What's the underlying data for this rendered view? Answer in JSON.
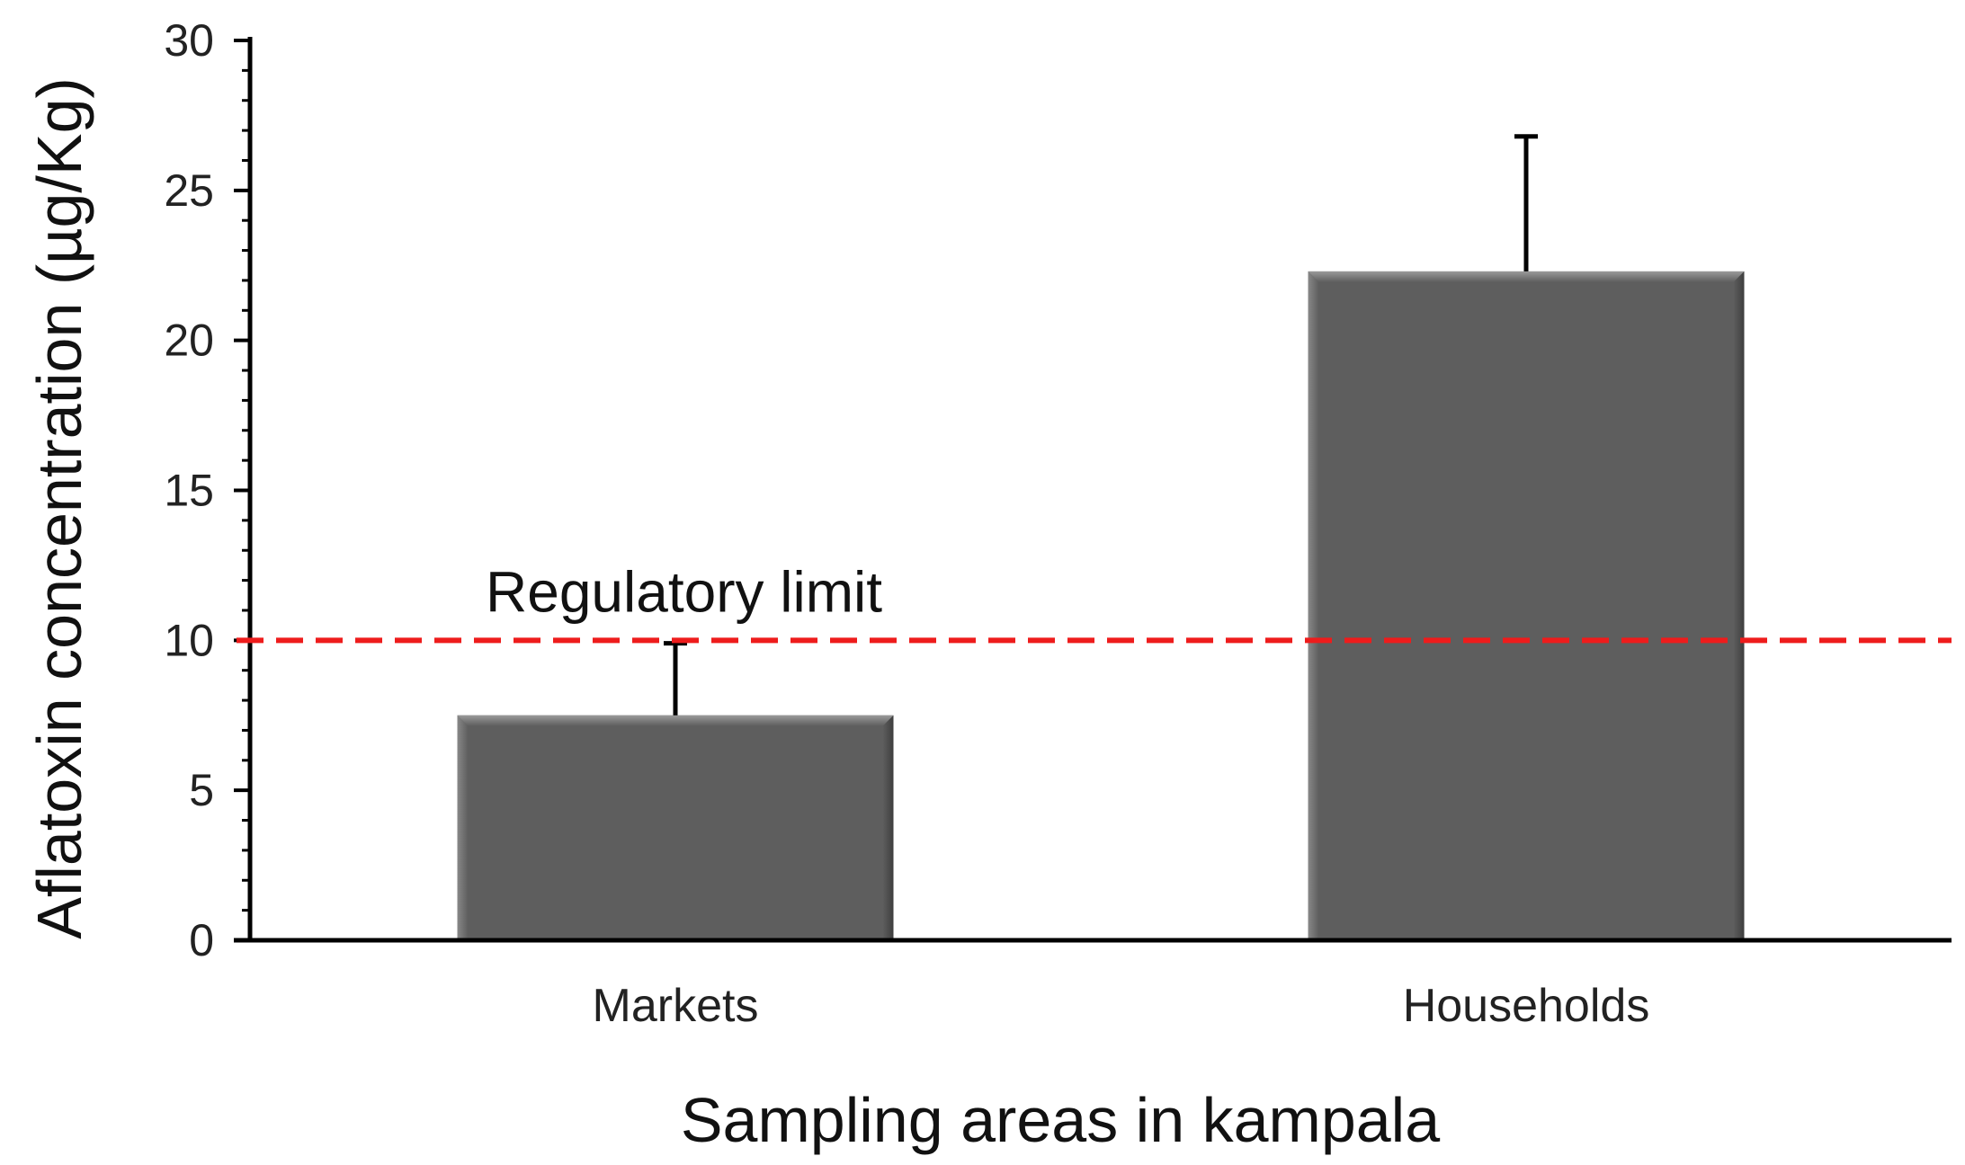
{
  "chart_data": {
    "type": "bar",
    "categories": [
      "Markets",
      "Households"
    ],
    "values": [
      7.5,
      22.3
    ],
    "error_upper": [
      9.9,
      26.8
    ],
    "xlabel": "Sampling areas in kampala",
    "ylabel": "Aflatoxin concentration (µg/Kg)",
    "ylim": [
      0,
      30
    ],
    "yticks": [
      0,
      5,
      10,
      15,
      20,
      25,
      30
    ],
    "grid": false,
    "legend": "none",
    "bar_color": "#5e5e5e",
    "reference_line": {
      "value": 10,
      "label": "Regulatory limit",
      "color": "#ee1c1c",
      "style": "dashed"
    }
  }
}
